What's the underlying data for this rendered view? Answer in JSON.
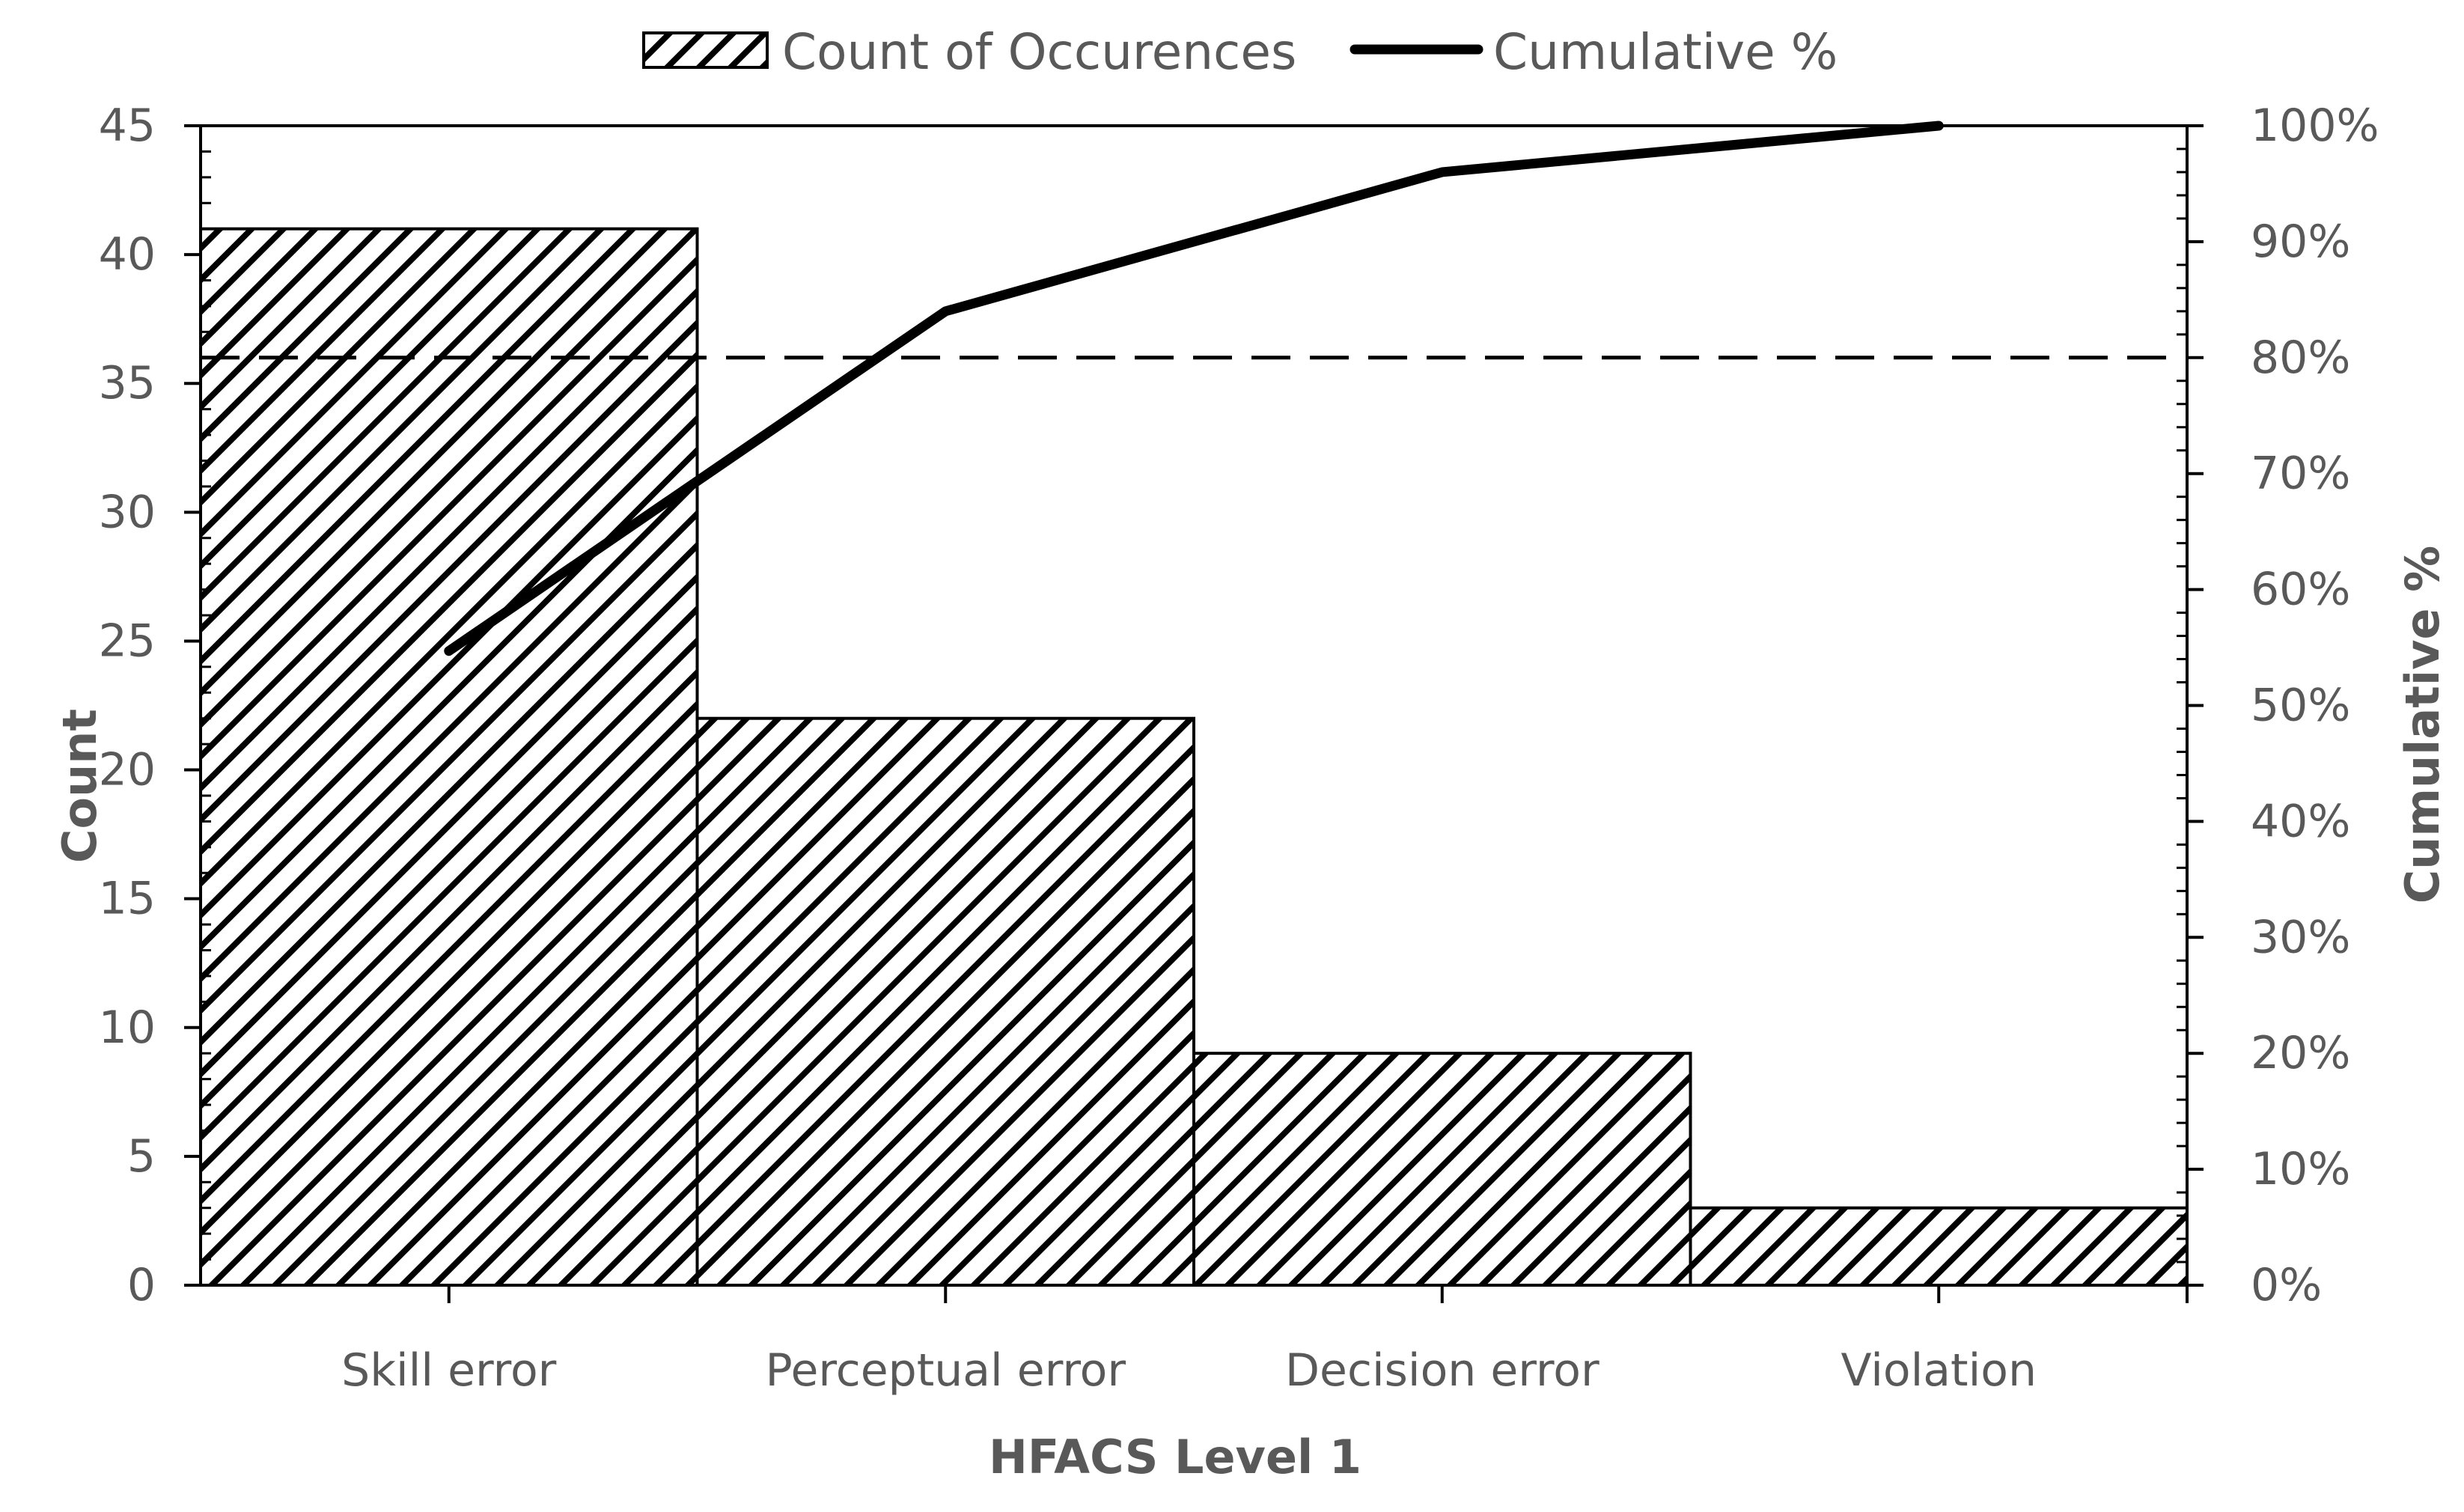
{
  "chart_data": {
    "type": "bar",
    "title": "",
    "xlabel": "HFACS Level 1",
    "ylabel": "Count",
    "y2label": "Cumulative %",
    "categories": [
      "Skill error",
      "Perceptual error",
      "Decision error",
      "Violation"
    ],
    "series": [
      {
        "name": "Count of Occurences",
        "type": "bar",
        "axis": "left",
        "values": [
          41,
          22,
          9,
          3
        ]
      },
      {
        "name": "Cumulative %",
        "type": "line",
        "axis": "right",
        "values": [
          54.7,
          84,
          96,
          100
        ]
      }
    ],
    "ylim": [
      0,
      45
    ],
    "y2lim": [
      0,
      100
    ],
    "yticks": [
      "0",
      "5",
      "10",
      "15",
      "20",
      "25",
      "30",
      "35",
      "40",
      "45"
    ],
    "y2ticks": [
      "0%",
      "10%",
      "20%",
      "30%",
      "40%",
      "50%",
      "60%",
      "70%",
      "80%",
      "90%",
      "100%"
    ],
    "reference_line": {
      "axis": "right",
      "value": 80,
      "style": "dashed"
    },
    "grid": false,
    "legend": "top-center",
    "bar_fill": "diagonal-hatch",
    "colors": {
      "ink": "#000000",
      "text": "#595959",
      "background": "#ffffff"
    }
  }
}
